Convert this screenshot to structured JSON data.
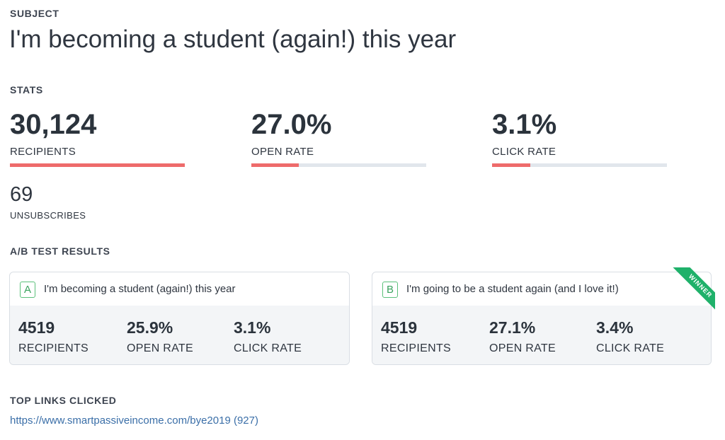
{
  "subject": {
    "label": "SUBJECT",
    "title": "I'm becoming a student (again!) this year"
  },
  "stats": {
    "label": "STATS",
    "recipients": {
      "value": "30,124",
      "label": "RECIPIENTS",
      "bar_fraction": 1.0
    },
    "open_rate": {
      "value": "27.0%",
      "label": "OPEN RATE",
      "bar_fraction": 0.27
    },
    "click_rate": {
      "value": "3.1%",
      "label": "CLICK RATE",
      "bar_fraction": 0.22
    },
    "unsubscribes": {
      "value": "69",
      "label": "UNSUBSCRIBES"
    },
    "bar_fill_color": "#ee6b6b",
    "bar_track_color": "#e1e6ec"
  },
  "ab_test": {
    "label": "A/B TEST RESULTS",
    "variants": [
      {
        "letter": "A",
        "subject": "I'm becoming a student (again!) this year",
        "recipients": "4519",
        "recipients_label": "RECIPIENTS",
        "open_rate": "25.9%",
        "open_rate_label": "OPEN RATE",
        "click_rate": "3.1%",
        "click_rate_label": "CLICK RATE"
      },
      {
        "letter": "B",
        "subject": "I'm going to be a student again (and I love it!)",
        "recipients": "4519",
        "recipients_label": "RECIPIENTS",
        "open_rate": "27.1%",
        "open_rate_label": "OPEN RATE",
        "click_rate": "3.4%",
        "click_rate_label": "CLICK RATE",
        "badge": "WINNER"
      }
    ],
    "winner_color": "#1fb16a"
  },
  "top_links": {
    "label": "TOP LINKS CLICKED",
    "items": [
      {
        "text": "https://www.smartpassiveincome.com/bye2019 (927)"
      }
    ]
  }
}
